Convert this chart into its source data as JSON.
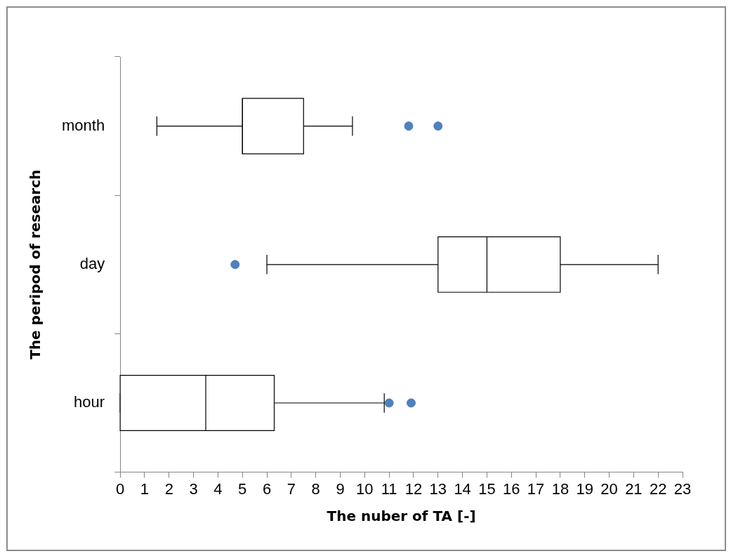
{
  "chart_data": {
    "type": "box",
    "orientation": "horizontal",
    "xlabel": "The nuber of TA [-]",
    "ylabel": "The peripod of research",
    "categories": [
      "month",
      "day",
      "hour"
    ],
    "boxes": [
      {
        "low": 1.5,
        "q1": 5,
        "median": 5,
        "q3": 7.5,
        "high": 9.5,
        "outliers": [
          11.8,
          13
        ]
      },
      {
        "low": 6,
        "q1": 13,
        "median": 15,
        "q3": 18,
        "high": 22,
        "outliers": [
          4.7
        ]
      },
      {
        "low": 0,
        "q1": 0,
        "median": 3.5,
        "q3": 6.3,
        "high": 10.8,
        "outliers": [
          11,
          11.9
        ]
      }
    ],
    "xlim": [
      0,
      23
    ],
    "xticks": [
      0,
      1,
      2,
      3,
      4,
      5,
      6,
      7,
      8,
      9,
      10,
      11,
      12,
      13,
      14,
      15,
      16,
      17,
      18,
      19,
      20,
      21,
      22,
      23
    ],
    "grid": false,
    "legend": false
  }
}
